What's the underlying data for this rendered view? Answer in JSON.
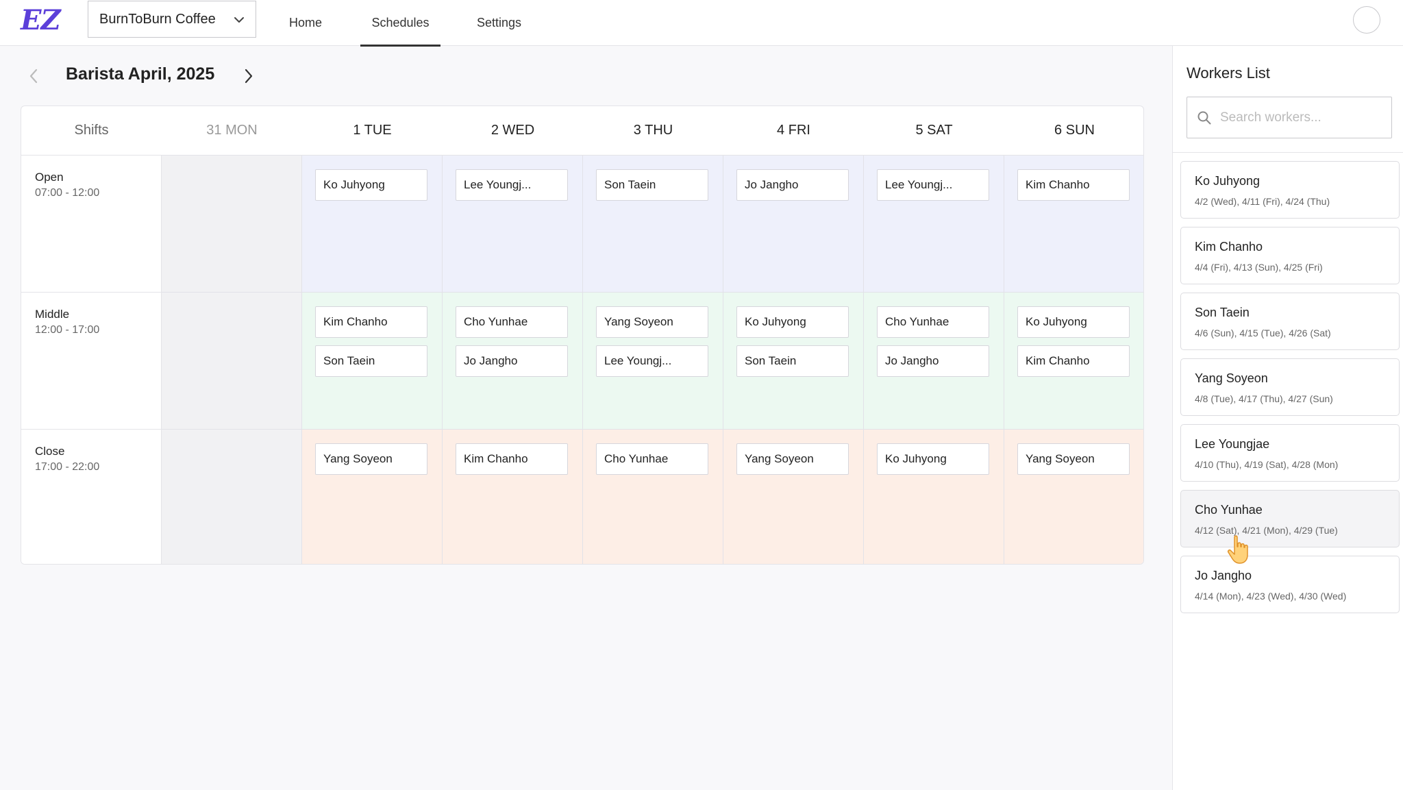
{
  "app": {
    "logo": "EZ",
    "store_name": "BurnToBurn Coffee"
  },
  "nav": {
    "home": "Home",
    "schedules": "Schedules",
    "settings": "Settings"
  },
  "page": {
    "title": "Barista April, 2025"
  },
  "schedule": {
    "shifts_header": "Shifts",
    "days": [
      "31 MON",
      "1 TUE",
      "2 WED",
      "3 THU",
      "4 FRI",
      "5 SAT",
      "6 SUN"
    ],
    "rows": [
      {
        "name": "Open",
        "time": "07:00 - 12:00",
        "cells": [
          [],
          [
            "Ko Juhyong"
          ],
          [
            "Lee Youngj..."
          ],
          [
            "Son Taein"
          ],
          [
            "Jo Jangho"
          ],
          [
            "Lee Youngj..."
          ],
          [
            "Kim Chanho"
          ]
        ]
      },
      {
        "name": "Middle",
        "time": "12:00 - 17:00",
        "cells": [
          [],
          [
            "Kim Chanho",
            "Son Taein"
          ],
          [
            "Cho Yunhae",
            "Jo Jangho"
          ],
          [
            "Yang Soyeon",
            "Lee Youngj..."
          ],
          [
            "Ko Juhyong",
            "Son Taein"
          ],
          [
            "Cho Yunhae",
            "Jo Jangho"
          ],
          [
            "Ko Juhyong",
            "Kim Chanho"
          ]
        ]
      },
      {
        "name": "Close",
        "time": "17:00 - 22:00",
        "cells": [
          [],
          [
            "Yang Soyeon"
          ],
          [
            "Kim Chanho"
          ],
          [
            "Cho Yunhae"
          ],
          [
            "Yang Soyeon"
          ],
          [
            "Ko Juhyong"
          ],
          [
            "Yang Soyeon"
          ]
        ]
      }
    ]
  },
  "workers_panel": {
    "title": "Workers List",
    "search_placeholder": "Search workers...",
    "workers": [
      {
        "name": "Ko Juhyong",
        "dates": "4/2 (Wed), 4/11 (Fri), 4/24 (Thu)"
      },
      {
        "name": "Kim Chanho",
        "dates": "4/4 (Fri), 4/13 (Sun), 4/25 (Fri)"
      },
      {
        "name": "Son Taein",
        "dates": "4/6 (Sun), 4/15 (Tue), 4/26 (Sat)"
      },
      {
        "name": "Yang Soyeon",
        "dates": "4/8 (Tue), 4/17 (Thu), 4/27 (Sun)"
      },
      {
        "name": "Lee Youngjae",
        "dates": "4/10 (Thu), 4/19 (Sat), 4/28 (Mon)"
      },
      {
        "name": "Cho Yunhae",
        "dates": "4/12 (Sat), 4/21 (Mon), 4/29 (Tue)"
      },
      {
        "name": "Jo Jangho",
        "dates": "4/14 (Mon), 4/23 (Wed), 4/30 (Wed)"
      }
    ]
  },
  "icons": {
    "store_dropdown": "chevron-down-icon",
    "prev_month": "chevron-left-icon",
    "next_month": "chevron-right-icon",
    "search": "search-icon",
    "cursor": "hand-pointer-icon"
  },
  "colors": {
    "brand": "#5b3fd9",
    "open_shift": "#eef0fb",
    "middle_shift": "#ecf9f1",
    "close_shift": "#fdeee6",
    "past_day": "#f1f1f3"
  }
}
